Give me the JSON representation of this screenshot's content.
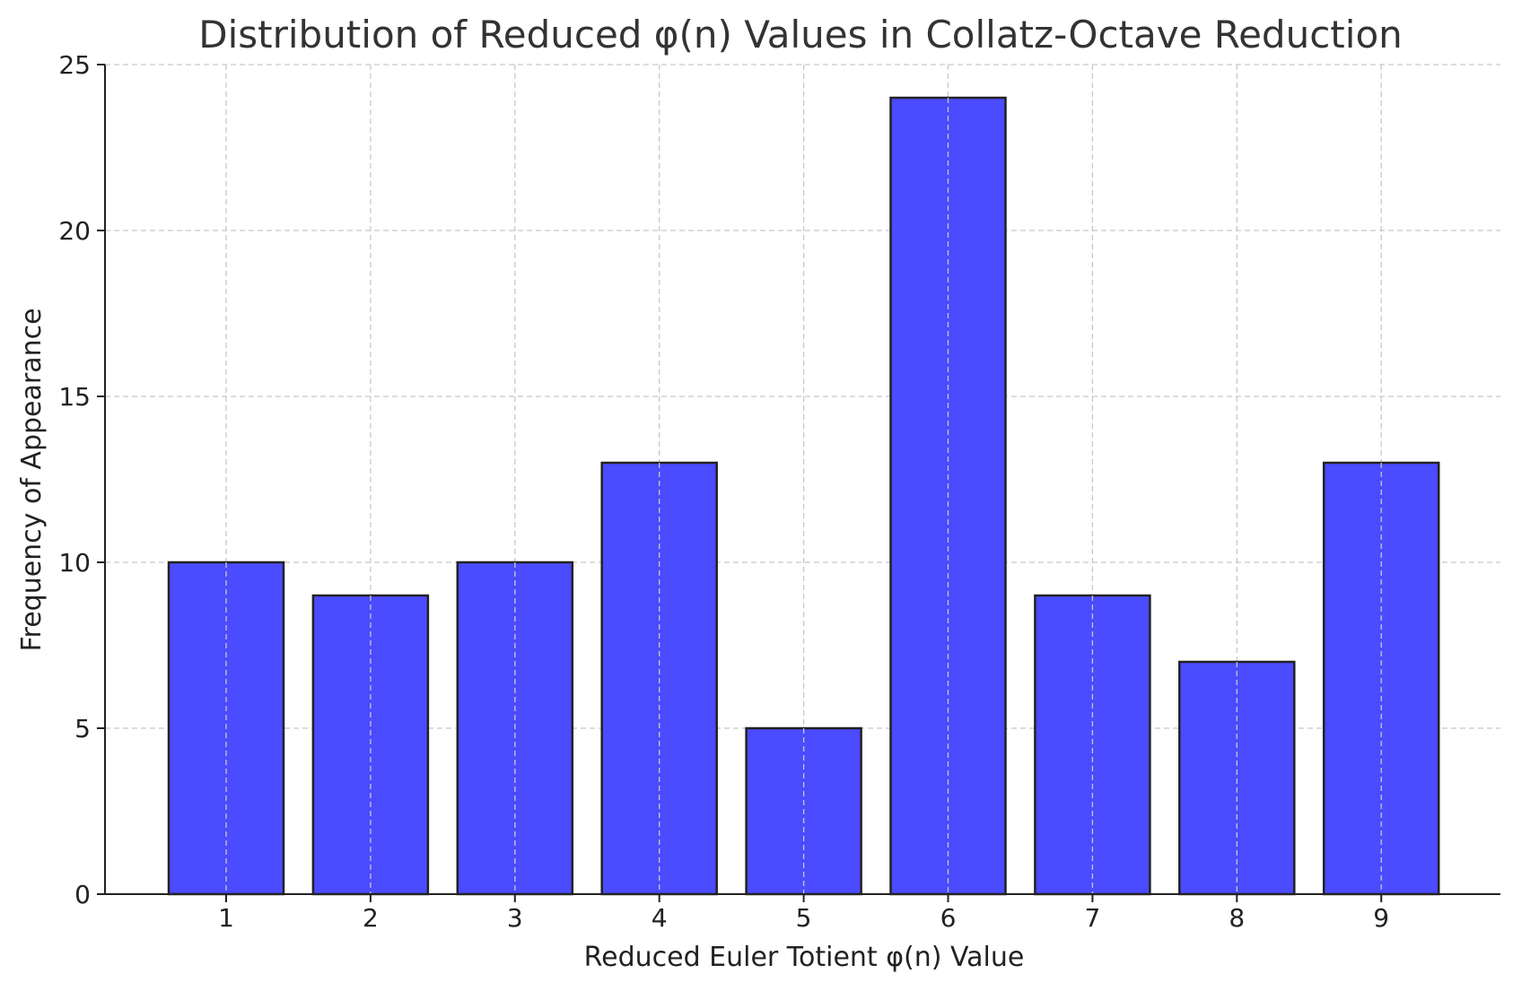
{
  "chart_data": {
    "type": "bar",
    "title": "Distribution of Reduced φ(n) Values in Collatz-Octave Reduction",
    "xlabel": "Reduced Euler Totient φ(n) Value",
    "ylabel": "Frequency of Appearance",
    "categories": [
      "1",
      "2",
      "3",
      "4",
      "5",
      "6",
      "7",
      "8",
      "9"
    ],
    "values": [
      10,
      9,
      10,
      13,
      5,
      24,
      9,
      7,
      13
    ],
    "ylim": [
      0,
      25
    ],
    "yticks": [
      "0",
      "5",
      "10",
      "15",
      "20",
      "25"
    ],
    "grid": true,
    "bar_color": "#4b4bff",
    "edge_color": "#222222"
  }
}
